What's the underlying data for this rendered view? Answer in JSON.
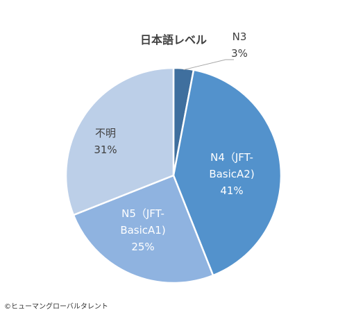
{
  "chart_data": {
    "type": "pie",
    "title": "日本語レベル",
    "slices": [
      {
        "name_lines": [
          "N3"
        ],
        "label": "3%",
        "value": 3,
        "color": "#3f6f9e"
      },
      {
        "name_lines": [
          "N4（JFT-",
          "BasicA2)"
        ],
        "label": "41%",
        "value": 41,
        "color": "#5392cc"
      },
      {
        "name_lines": [
          "N5（JFT-",
          "BasicA1)"
        ],
        "label": "25%",
        "value": 25,
        "color": "#8fb3e0"
      },
      {
        "name_lines": [
          "不明"
        ],
        "label": "31%",
        "value": 31,
        "color": "#bccfe8"
      }
    ],
    "start_angle_deg": 0,
    "direction": "clockwise",
    "legend": "none"
  },
  "footer": {
    "copyright": "©ヒューマングローバルタレント"
  }
}
